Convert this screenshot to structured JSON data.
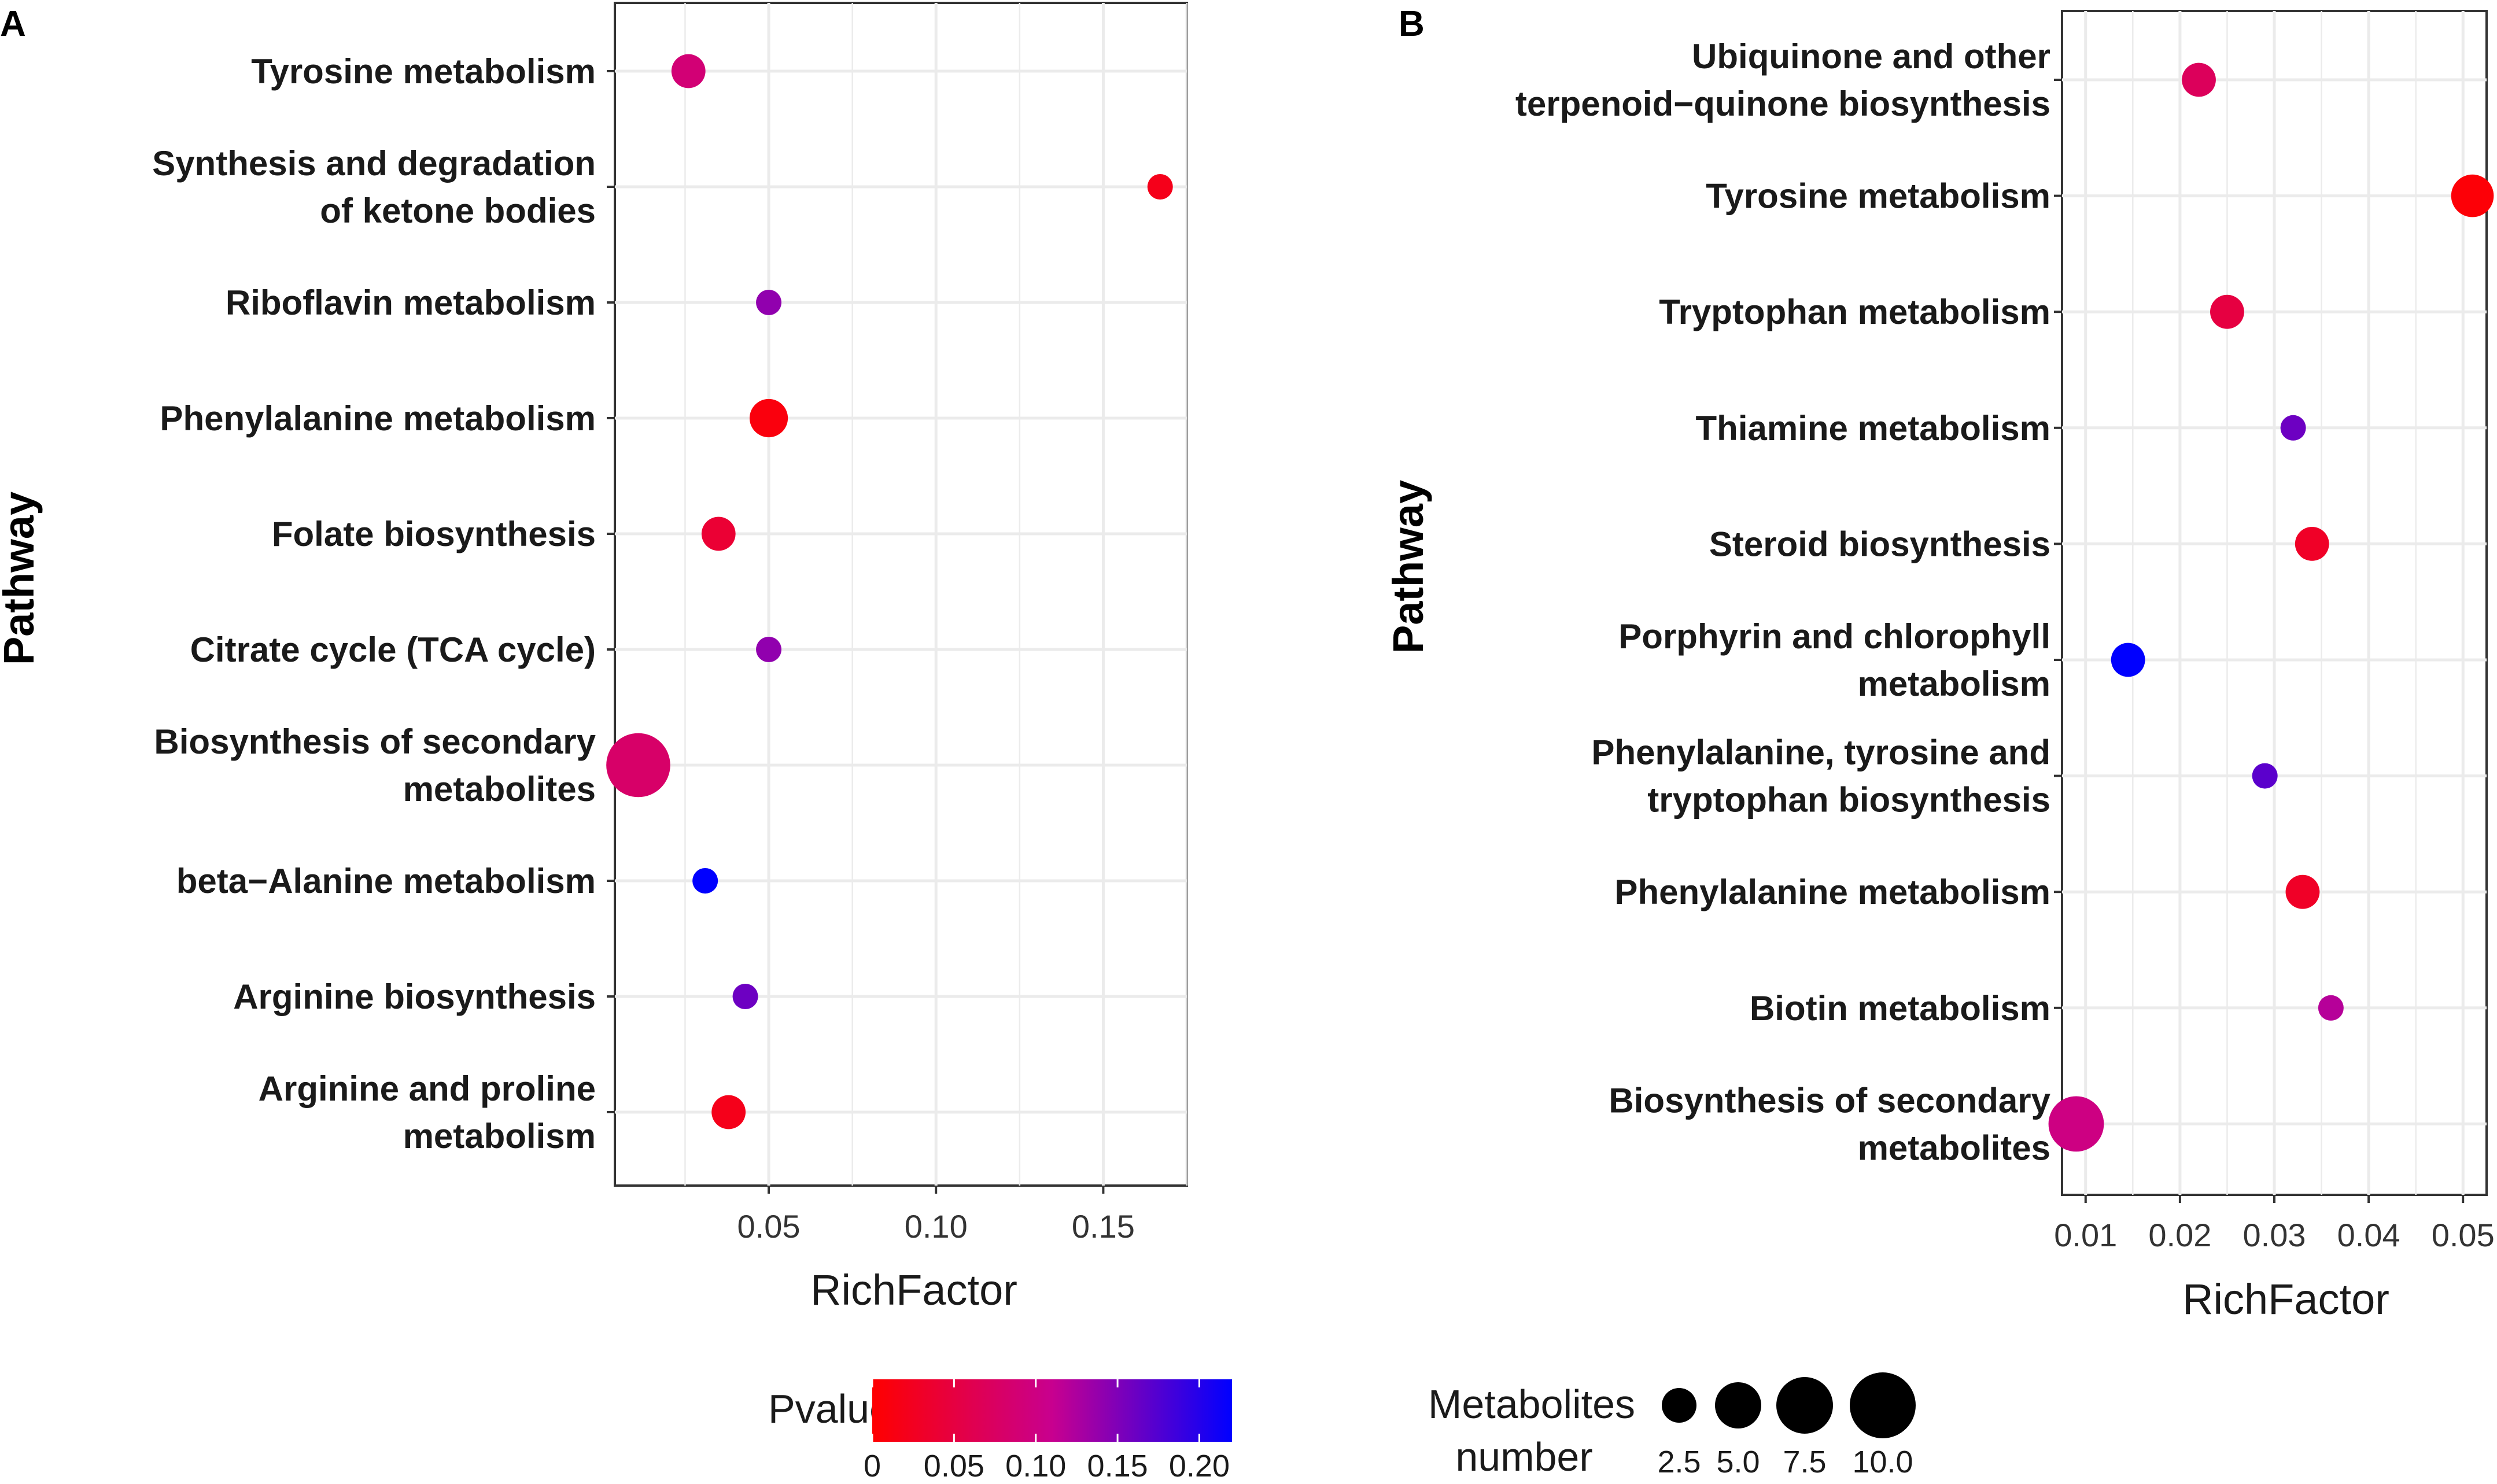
{
  "chart_data": [
    {
      "panel": "A",
      "type": "scatter",
      "xlabel": "RichFactor",
      "ylabel": "Pathway",
      "xlim": [
        0.004,
        0.175
      ],
      "xticks": [
        0.05,
        0.1,
        0.15
      ],
      "xtick_labels": [
        "0.05",
        "0.10",
        "0.15"
      ],
      "categories": [
        "Tyrosine metabolism",
        "Synthesis and degradation\nof ketone bodies",
        "Riboflavin metabolism",
        "Phenylalanine metabolism",
        "Folate biosynthesis",
        "Citrate cycle (TCA cycle)",
        "Biosynthesis of secondary\nmetabolites",
        "beta−Alanine metabolism",
        "Arginine biosynthesis",
        "Arginine and proline\nmetabolism"
      ],
      "points": [
        {
          "pathway": "Tyrosine metabolism",
          "richfactor": 0.026,
          "count": 3,
          "pvalue": 0.09
        },
        {
          "pathway": "Synthesis and degradation of ketone bodies",
          "richfactor": 0.167,
          "count": 1,
          "pvalue": 0.02
        },
        {
          "pathway": "Riboflavin metabolism",
          "richfactor": 0.05,
          "count": 1,
          "pvalue": 0.14
        },
        {
          "pathway": "Phenylalanine metabolism",
          "richfactor": 0.05,
          "count": 4,
          "pvalue": 0.01
        },
        {
          "pathway": "Folate biosynthesis",
          "richfactor": 0.035,
          "count": 3,
          "pvalue": 0.04
        },
        {
          "pathway": "Citrate cycle (TCA cycle)",
          "richfactor": 0.05,
          "count": 1,
          "pvalue": 0.14
        },
        {
          "pathway": "Biosynthesis of secondary metabolites",
          "richfactor": 0.011,
          "count": 10,
          "pvalue": 0.08
        },
        {
          "pathway": "beta−Alanine metabolism",
          "richfactor": 0.031,
          "count": 1,
          "pvalue": 0.22
        },
        {
          "pathway": "Arginine biosynthesis",
          "richfactor": 0.043,
          "count": 1,
          "pvalue": 0.16
        },
        {
          "pathway": "Arginine and proline metabolism",
          "richfactor": 0.038,
          "count": 3,
          "pvalue": 0.02
        }
      ]
    },
    {
      "panel": "B",
      "type": "scatter",
      "xlabel": "RichFactor",
      "ylabel": "Pathway",
      "xlim": [
        0.0075,
        0.0525
      ],
      "xticks": [
        0.01,
        0.02,
        0.03,
        0.04,
        0.05
      ],
      "xtick_labels": [
        "0.01",
        "0.02",
        "0.03",
        "0.04",
        "0.05"
      ],
      "categories": [
        "Ubiquinone and other\nterpenoid−quinone biosynthesis",
        "Tyrosine metabolism",
        "Tryptophan metabolism",
        "Thiamine metabolism",
        "Steroid biosynthesis",
        "Porphyrin and chlorophyll\nmetabolism",
        "Phenylalanine, tyrosine and\ntryptophan biosynthesis",
        "Phenylalanine metabolism",
        "Biotin metabolism",
        "Biosynthesis of secondary\nmetabolites"
      ],
      "points": [
        {
          "pathway": "Ubiquinone and other terpenoid−quinone biosynthesis",
          "richfactor": 0.022,
          "count": 3,
          "pvalue": 0.07
        },
        {
          "pathway": "Tyrosine metabolism",
          "richfactor": 0.051,
          "count": 5,
          "pvalue": 0.005
        },
        {
          "pathway": "Tryptophan metabolism",
          "richfactor": 0.025,
          "count": 3,
          "pvalue": 0.05
        },
        {
          "pathway": "Thiamine metabolism",
          "richfactor": 0.032,
          "count": 1,
          "pvalue": 0.16
        },
        {
          "pathway": "Steroid biosynthesis",
          "richfactor": 0.034,
          "count": 3,
          "pvalue": 0.03
        },
        {
          "pathway": "Porphyrin and chlorophyll metabolism",
          "richfactor": 0.0145,
          "count": 3,
          "pvalue": 0.22
        },
        {
          "pathway": "Phenylalanine, tyrosine and tryptophan biosynthesis",
          "richfactor": 0.029,
          "count": 1,
          "pvalue": 0.17
        },
        {
          "pathway": "Phenylalanine metabolism",
          "richfactor": 0.033,
          "count": 3,
          "pvalue": 0.03
        },
        {
          "pathway": "Biotin metabolism",
          "richfactor": 0.036,
          "count": 1,
          "pvalue": 0.12
        },
        {
          "pathway": "Biosynthesis of secondary metabolites",
          "richfactor": 0.009,
          "count": 8,
          "pvalue": 0.1
        }
      ]
    }
  ],
  "panel_labels": {
    "a": "A",
    "b": "B"
  },
  "legend": {
    "pvalue_title": "Pvalue",
    "pvalue_ticks": [
      "0",
      "0.05",
      "0.10",
      "0.15",
      "0.20"
    ],
    "pvalue_tick_values": [
      0,
      0.05,
      0.1,
      0.15,
      0.2
    ],
    "pvalue_range": [
      0,
      0.22
    ],
    "size_title_line1": "Metabolites",
    "size_title_line2": "number",
    "size_ticks": [
      "2.5",
      "5.0",
      "7.5",
      "10.0"
    ],
    "size_values": [
      2.5,
      5.0,
      7.5,
      10.0
    ]
  },
  "colors": {
    "low_p": "#FF0000",
    "high_p": "#0000FF",
    "grid": "#EBEBEB",
    "axis": "#333333",
    "point_black": "#000000"
  }
}
